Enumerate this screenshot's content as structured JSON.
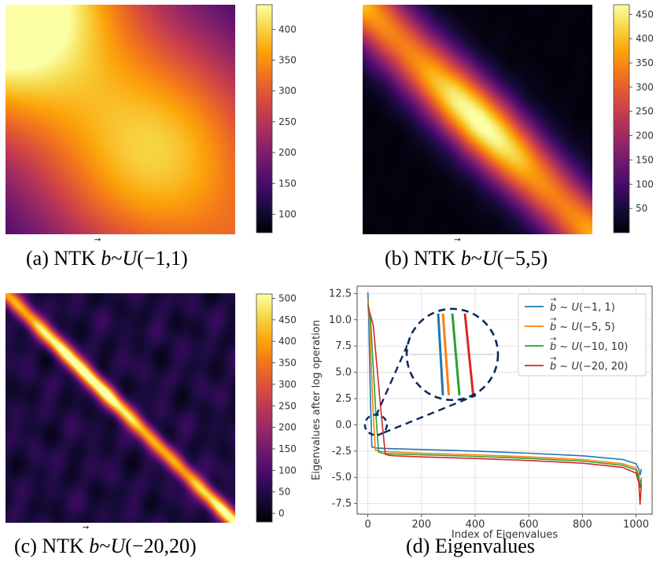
{
  "captions": {
    "a": {
      "prefix": "(a) NTK ",
      "vec": "b",
      "sim": "~",
      "dist": "U",
      "args": "(−1,1)"
    },
    "b": {
      "prefix": "(b) NTK ",
      "vec": "b",
      "sim": "~",
      "dist": "U",
      "args": "(−5,5)"
    },
    "c": {
      "prefix": "(c) NTK ",
      "vec": "b",
      "sim": "~",
      "dist": "U",
      "args": "(−20,20)"
    },
    "d": {
      "text": "(d) Eigenvalues"
    }
  },
  "chart_data": [
    {
      "type": "heatmap",
      "panel": "a",
      "description_pattern": "broad-band",
      "colormap": "inferno",
      "colorbar_ticks": [
        100,
        150,
        200,
        250,
        300,
        350,
        400
      ],
      "value_range": [
        70,
        440
      ],
      "bandwidth": 0.55,
      "base_level": 0.0,
      "corner_boost": 0.35
    },
    {
      "type": "heatmap",
      "panel": "b",
      "colormap": "inferno",
      "colorbar_ticks": [
        50,
        100,
        150,
        200,
        250,
        300,
        350,
        400,
        450
      ],
      "value_range": [
        0,
        470
      ],
      "bandwidth": 0.14,
      "base_level": 0.02,
      "corner_boost": 0.0
    },
    {
      "type": "heatmap",
      "panel": "c",
      "colormap": "inferno",
      "colorbar_ticks": [
        0,
        50,
        100,
        150,
        200,
        250,
        300,
        350,
        400,
        450,
        500
      ],
      "value_range": [
        -20,
        510
      ],
      "bandwidth": 0.035,
      "base_level": 0.14,
      "corner_boost": 0.0
    },
    {
      "type": "line",
      "panel": "d",
      "xlabel": "Index of Eigenvalues",
      "ylabel": "Eigenvalues after log operation",
      "xlim": [
        -40,
        1060
      ],
      "ylim": [
        -8.5,
        13.2
      ],
      "xticks": [
        0,
        200,
        400,
        600,
        800,
        1000
      ],
      "yticks": [
        -7.5,
        -5.0,
        -2.5,
        0.0,
        2.5,
        5.0,
        7.5,
        10.0,
        12.5
      ],
      "grid": true,
      "legend_position": "top-right",
      "series": [
        {
          "name": "b ~ U(−1, 1)",
          "args": "(−1, 1)",
          "color": "#1f77b4",
          "x": [
            0,
            3,
            10,
            15,
            30,
            60,
            200,
            400,
            600,
            800,
            950,
            1000,
            1010,
            1015,
            1020
          ],
          "y": [
            12.6,
            10.5,
            2.0,
            -2.1,
            -2.2,
            -2.25,
            -2.35,
            -2.5,
            -2.7,
            -2.95,
            -3.3,
            -3.7,
            -4.2,
            -4.8,
            -4.2
          ]
        },
        {
          "name": "b ~ U(−5, 5)",
          "args": "(−5, 5)",
          "color": "#ff7f0e",
          "x": [
            0,
            5,
            20,
            28,
            40,
            60,
            200,
            400,
            600,
            800,
            950,
            1000,
            1010,
            1015,
            1020
          ],
          "y": [
            11.9,
            10.5,
            1.0,
            -2.4,
            -2.5,
            -2.55,
            -2.7,
            -2.85,
            -3.05,
            -3.3,
            -3.7,
            -4.1,
            -4.8,
            -5.8,
            -5.0
          ]
        },
        {
          "name": "b ~ U(−10, 10)",
          "args": "(−10, 10)",
          "color": "#2ca02c",
          "x": [
            0,
            10,
            30,
            40,
            55,
            70,
            200,
            400,
            600,
            800,
            950,
            1000,
            1010,
            1015,
            1020
          ],
          "y": [
            11.6,
            10.0,
            1.0,
            -2.6,
            -2.7,
            -2.75,
            -2.85,
            -3.0,
            -3.2,
            -3.45,
            -3.85,
            -4.3,
            -5.0,
            -6.0,
            -5.2
          ]
        },
        {
          "name": "b ~ U(−20, 20)",
          "args": "(−20, 20)",
          "color": "#d62728",
          "x": [
            0,
            20,
            50,
            65,
            80,
            100,
            200,
            400,
            600,
            800,
            950,
            1000,
            1010,
            1015,
            1020
          ],
          "y": [
            11.3,
            9.5,
            1.0,
            -2.8,
            -2.9,
            -2.95,
            -3.05,
            -3.2,
            -3.4,
            -3.65,
            -4.05,
            -4.6,
            -5.5,
            -7.6,
            -5.6
          ]
        }
      ]
    }
  ]
}
